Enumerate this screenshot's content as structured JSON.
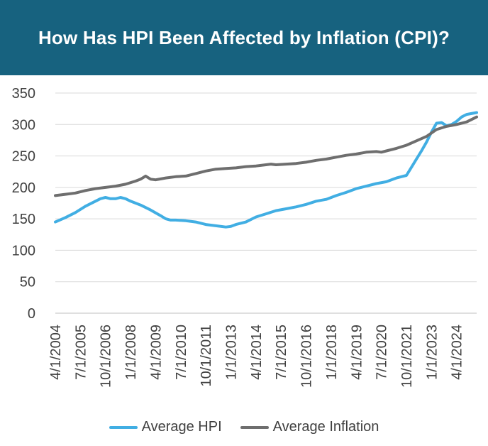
{
  "title": "How Has HPI Been Affected by Inflation (CPI)?",
  "colors": {
    "banner": "#17627f",
    "banner_text": "#ffffff",
    "hpi": "#41aee3",
    "inflation": "#6e6e6e",
    "grid": "#d9d9d9",
    "axis_text": "#404040"
  },
  "legend": {
    "hpi_label": "Average HPI",
    "inflation_label": "Average Inflation"
  },
  "chart_data": {
    "type": "line",
    "title": "How Has HPI Been Affected by Inflation (CPI)?",
    "xlabel": "",
    "ylabel": "",
    "ylim": [
      0,
      350
    ],
    "yticks": [
      0,
      50,
      100,
      150,
      200,
      250,
      300,
      350
    ],
    "grid": true,
    "legend_position": "bottom",
    "x_tick_labels": [
      "4/1/2004",
      "7/1/2005",
      "10/1/2006",
      "1/1/2008",
      "4/1/2009",
      "7/1/2010",
      "10/1/2011",
      "1/1/2013",
      "4/1/2014",
      "7/1/2015",
      "10/1/2016",
      "1/1/2018",
      "4/1/2019",
      "7/1/2020",
      "10/1/2021",
      "1/1/2023",
      "4/1/2024"
    ],
    "series": [
      {
        "name": "Average HPI",
        "color": "#41aee3",
        "points": [
          [
            "2004-04",
            145
          ],
          [
            "2004-10",
            152
          ],
          [
            "2005-04",
            160
          ],
          [
            "2005-10",
            170
          ],
          [
            "2006-04",
            178
          ],
          [
            "2006-07",
            182
          ],
          [
            "2006-10",
            184
          ],
          [
            "2007-01",
            182
          ],
          [
            "2007-04",
            182
          ],
          [
            "2007-07",
            184
          ],
          [
            "2007-10",
            182
          ],
          [
            "2008-01",
            178
          ],
          [
            "2008-07",
            172
          ],
          [
            "2009-01",
            164
          ],
          [
            "2009-07",
            155
          ],
          [
            "2009-10",
            150
          ],
          [
            "2010-01",
            148
          ],
          [
            "2010-04",
            148
          ],
          [
            "2010-10",
            147
          ],
          [
            "2011-04",
            145
          ],
          [
            "2011-10",
            141
          ],
          [
            "2012-04",
            139
          ],
          [
            "2012-10",
            137
          ],
          [
            "2013-01",
            138
          ],
          [
            "2013-04",
            141
          ],
          [
            "2013-10",
            145
          ],
          [
            "2014-04",
            153
          ],
          [
            "2014-10",
            158
          ],
          [
            "2015-04",
            163
          ],
          [
            "2015-10",
            166
          ],
          [
            "2016-04",
            169
          ],
          [
            "2016-10",
            173
          ],
          [
            "2017-04",
            178
          ],
          [
            "2017-10",
            181
          ],
          [
            "2018-04",
            187
          ],
          [
            "2018-10",
            192
          ],
          [
            "2019-04",
            198
          ],
          [
            "2019-10",
            202
          ],
          [
            "2020-04",
            206
          ],
          [
            "2020-10",
            209
          ],
          [
            "2021-04",
            215
          ],
          [
            "2021-07",
            217
          ],
          [
            "2021-10",
            219
          ],
          [
            "2022-01",
            232
          ],
          [
            "2022-04",
            245
          ],
          [
            "2022-07",
            258
          ],
          [
            "2022-10",
            272
          ],
          [
            "2023-01",
            288
          ],
          [
            "2023-04",
            302
          ],
          [
            "2023-07",
            303
          ],
          [
            "2023-10",
            298
          ],
          [
            "2024-01",
            300
          ],
          [
            "2024-04",
            305
          ],
          [
            "2024-07",
            312
          ],
          [
            "2024-10",
            316
          ],
          [
            "2025-04",
            319
          ]
        ]
      },
      {
        "name": "Average Inflation",
        "color": "#6e6e6e",
        "points": [
          [
            "2004-04",
            187
          ],
          [
            "2004-10",
            189
          ],
          [
            "2005-04",
            191
          ],
          [
            "2005-10",
            195
          ],
          [
            "2006-04",
            198
          ],
          [
            "2006-10",
            200
          ],
          [
            "2007-04",
            202
          ],
          [
            "2007-10",
            205
          ],
          [
            "2008-04",
            210
          ],
          [
            "2008-07",
            213
          ],
          [
            "2008-10",
            218
          ],
          [
            "2009-01",
            213
          ],
          [
            "2009-04",
            212
          ],
          [
            "2009-10",
            215
          ],
          [
            "2010-04",
            217
          ],
          [
            "2010-10",
            218
          ],
          [
            "2011-04",
            222
          ],
          [
            "2011-10",
            226
          ],
          [
            "2012-04",
            229
          ],
          [
            "2012-10",
            230
          ],
          [
            "2013-04",
            231
          ],
          [
            "2013-10",
            233
          ],
          [
            "2014-04",
            234
          ],
          [
            "2014-10",
            236
          ],
          [
            "2015-01",
            237
          ],
          [
            "2015-04",
            236
          ],
          [
            "2015-10",
            237
          ],
          [
            "2016-04",
            238
          ],
          [
            "2016-10",
            240
          ],
          [
            "2017-04",
            243
          ],
          [
            "2017-10",
            245
          ],
          [
            "2018-04",
            248
          ],
          [
            "2018-10",
            251
          ],
          [
            "2019-04",
            253
          ],
          [
            "2019-10",
            256
          ],
          [
            "2020-04",
            257
          ],
          [
            "2020-07",
            256
          ],
          [
            "2020-10",
            258
          ],
          [
            "2021-04",
            262
          ],
          [
            "2021-10",
            267
          ],
          [
            "2022-04",
            274
          ],
          [
            "2022-10",
            281
          ],
          [
            "2023-04",
            292
          ],
          [
            "2023-10",
            297
          ],
          [
            "2024-04",
            300
          ],
          [
            "2024-10",
            304
          ],
          [
            "2025-04",
            312
          ]
        ]
      }
    ]
  }
}
